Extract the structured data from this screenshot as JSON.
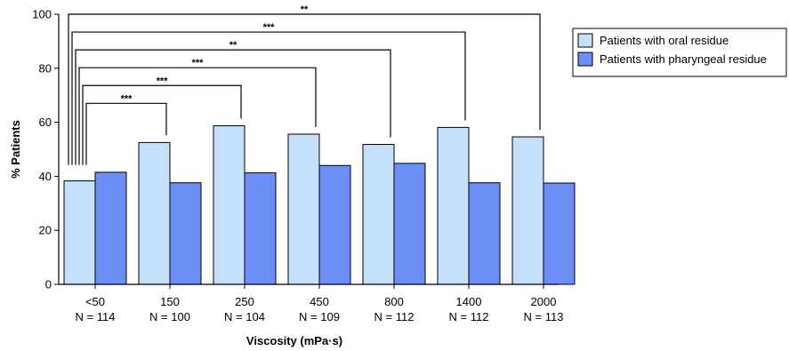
{
  "chart_data": {
    "type": "bar",
    "xlabel": "Viscosity (mPa·s)",
    "ylabel": "% Patients",
    "ylim": [
      0,
      100
    ],
    "yticks": [
      0,
      20,
      40,
      60,
      80,
      100
    ],
    "categories": [
      "<50",
      "150",
      "250",
      "450",
      "800",
      "1400",
      "2000"
    ],
    "sample_sizes": [
      "N = 114",
      "N = 100",
      "N = 104",
      "N = 109",
      "N = 112",
      "N = 112",
      "N = 113"
    ],
    "series": [
      {
        "name": "Patients with oral residue",
        "color": "#c5e0fa",
        "values": [
          38.3,
          52.5,
          58.7,
          55.6,
          51.8,
          58.1,
          54.6
        ]
      },
      {
        "name": "Patients with pharyngeal residue",
        "color": "#6b8ff7",
        "values": [
          41.5,
          37.6,
          41.3,
          44.0,
          44.8,
          37.6,
          37.5
        ]
      }
    ],
    "significance": [
      {
        "from": "<50",
        "to": "150",
        "label": "***"
      },
      {
        "from": "<50",
        "to": "250",
        "label": "***"
      },
      {
        "from": "<50",
        "to": "450",
        "label": "***"
      },
      {
        "from": "<50",
        "to": "800",
        "label": "**"
      },
      {
        "from": "<50",
        "to": "1400",
        "label": "***"
      },
      {
        "from": "<50",
        "to": "2000",
        "label": "**"
      }
    ],
    "legend_position": "top-right",
    "grid": false
  }
}
